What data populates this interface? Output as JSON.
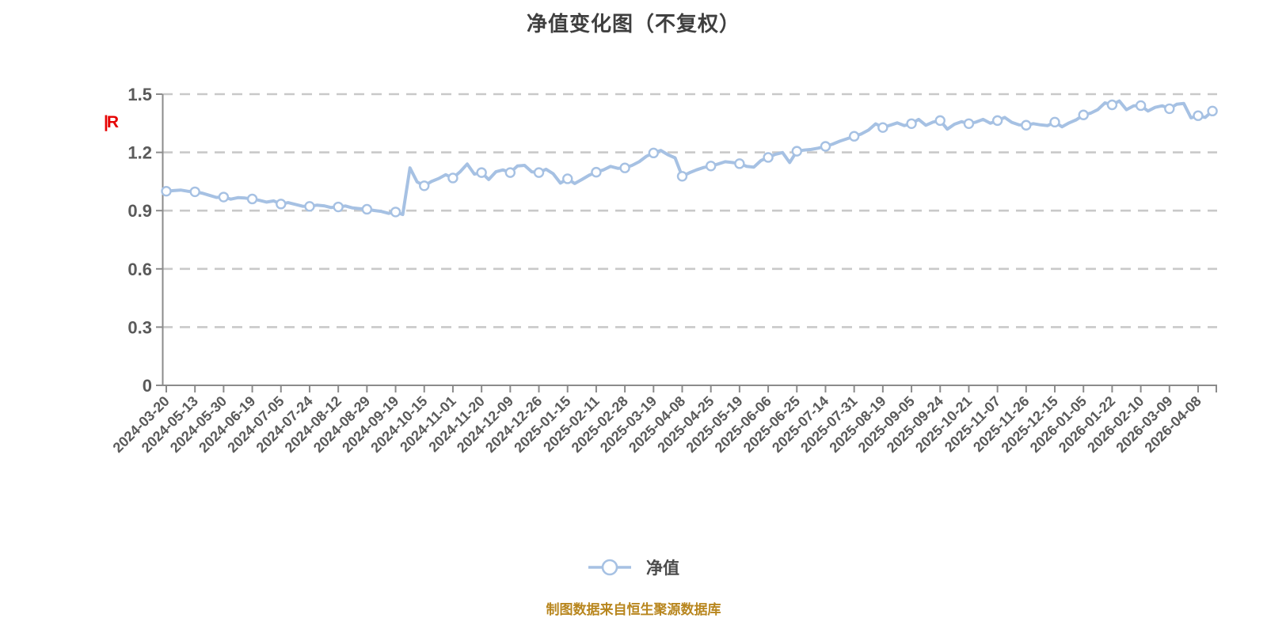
{
  "title": "净值变化图（不复权）",
  "watermark": "|R",
  "legend": {
    "label": "净值"
  },
  "footer": "制图数据来自恒生聚源数据库",
  "chart_data": {
    "type": "line",
    "title": "净值变化图（不复权）",
    "xlabel": "",
    "ylabel": "",
    "ylim": [
      0,
      1.5
    ],
    "y_ticks": [
      0,
      0.3,
      0.6,
      0.9,
      1.2,
      1.5
    ],
    "y_tick_labels": [
      "0",
      "0.3",
      "0.6",
      "0.9",
      "1.2",
      "1.5"
    ],
    "grid": "horizontal-dashed",
    "legend_position": "bottom-center",
    "x_tick_labels": [
      "2024-03-20",
      "2024-05-13",
      "2024-05-30",
      "2024-06-19",
      "2024-07-05",
      "2024-07-24",
      "2024-08-12",
      "2024-08-29",
      "2024-09-19",
      "2024-10-15",
      "2024-11-01",
      "2024-11-20",
      "2024-12-09",
      "2024-12-26",
      "2025-01-15",
      "2025-02-11",
      "2025-02-28",
      "2025-03-19",
      "2025-04-08",
      "2025-04-25",
      "2025-05-19",
      "2025-06-06",
      "2025-06-25",
      "2025-07-14",
      "2025-07-31",
      "2025-08-19",
      "2025-09-05",
      "2025-09-24",
      "2025-10-21",
      "2025-11-07",
      "2025-11-26",
      "2025-12-15",
      "2026-01-05",
      "2026-01-22",
      "2026-02-10",
      "2026-03-09",
      "2026-04-08"
    ],
    "series": [
      {
        "name": "净值",
        "values_at_ticks": [
          1.0,
          0.997,
          0.97,
          0.96,
          0.934,
          0.922,
          0.919,
          0.907,
          0.893,
          1.028,
          1.068,
          1.096,
          1.096,
          1.096,
          1.064,
          1.098,
          1.12,
          1.197,
          1.077,
          1.13,
          1.142,
          1.174,
          1.206,
          1.231,
          1.283,
          1.328,
          1.348,
          1.364,
          1.348,
          1.364,
          1.34,
          1.356,
          1.393,
          1.445,
          1.441,
          1.425,
          1.389
        ],
        "final_value": 1.413,
        "points_per_tick_interval": 4,
        "marker": "white-circle-at-each-tick",
        "dense_values": [
          1.0,
          1.003,
          1.006,
          1.0,
          0.997,
          0.99,
          0.979,
          0.968,
          0.97,
          0.959,
          0.967,
          0.965,
          0.96,
          0.953,
          0.944,
          0.95,
          0.934,
          0.941,
          0.932,
          0.923,
          0.922,
          0.928,
          0.925,
          0.916,
          0.919,
          0.924,
          0.914,
          0.91,
          0.907,
          0.901,
          0.896,
          0.886,
          0.893,
          0.88,
          1.12,
          1.048,
          1.028,
          1.05,
          1.065,
          1.085,
          1.068,
          1.1,
          1.14,
          1.088,
          1.096,
          1.06,
          1.1,
          1.11,
          1.096,
          1.13,
          1.133,
          1.1,
          1.096,
          1.113,
          1.09,
          1.042,
          1.064,
          1.04,
          1.06,
          1.082,
          1.098,
          1.11,
          1.128,
          1.118,
          1.12,
          1.133,
          1.152,
          1.18,
          1.197,
          1.21,
          1.188,
          1.172,
          1.077,
          1.095,
          1.11,
          1.122,
          1.13,
          1.14,
          1.152,
          1.148,
          1.142,
          1.128,
          1.124,
          1.158,
          1.174,
          1.19,
          1.199,
          1.148,
          1.206,
          1.212,
          1.215,
          1.222,
          1.231,
          1.243,
          1.258,
          1.27,
          1.283,
          1.295,
          1.315,
          1.347,
          1.328,
          1.34,
          1.352,
          1.338,
          1.348,
          1.37,
          1.34,
          1.356,
          1.364,
          1.32,
          1.345,
          1.358,
          1.348,
          1.356,
          1.37,
          1.35,
          1.364,
          1.38,
          1.355,
          1.342,
          1.34,
          1.348,
          1.342,
          1.338,
          1.356,
          1.332,
          1.352,
          1.368,
          1.393,
          1.402,
          1.42,
          1.455,
          1.445,
          1.465,
          1.42,
          1.44,
          1.441,
          1.413,
          1.432,
          1.44,
          1.425,
          1.448,
          1.452,
          1.378,
          1.389,
          1.38,
          1.413
        ]
      }
    ],
    "colors": {
      "line": "#a6c1e3",
      "marker_fill": "#ffffff",
      "marker_border": "#a6c1e3",
      "grid": "#c9c9c9",
      "axis": "#8b8b8b",
      "title_text": "#3f3f3f",
      "tick_text": "#5a5a5a",
      "legend_text": "#4a4a4a",
      "footer_text": "#b8861e",
      "watermark": "#e60000"
    }
  }
}
